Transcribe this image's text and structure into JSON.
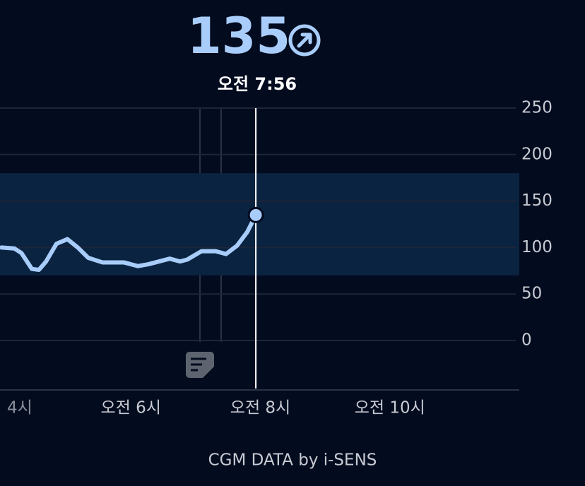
{
  "header": {
    "value": "135",
    "time": "오전 7:56"
  },
  "chart_data": {
    "type": "line",
    "x": [
      4.0,
      4.2,
      4.31,
      4.47,
      4.58,
      4.69,
      4.85,
      5.02,
      5.18,
      5.34,
      5.56,
      5.89,
      6.11,
      6.27,
      6.6,
      6.76,
      6.87,
      7.09,
      7.31,
      7.47,
      7.64,
      7.8,
      7.93
    ],
    "values": [
      100,
      99,
      94,
      77,
      76,
      85,
      104,
      109,
      100,
      89,
      84,
      84,
      80,
      82,
      88,
      85,
      87,
      96,
      96,
      93,
      102,
      117,
      135
    ],
    "color": "#a9cdfa",
    "xlim": [
      4,
      12
    ],
    "xticks": [
      {
        "value": 4,
        "label": "4시"
      },
      {
        "value": 6,
        "label": "오전 6시"
      },
      {
        "value": 8,
        "label": "오전 8시"
      },
      {
        "value": 10,
        "label": "오전 10시"
      }
    ],
    "ylim": [
      0,
      250
    ],
    "yticks": [
      0,
      50,
      100,
      150,
      200,
      250
    ],
    "target_range": [
      70,
      180
    ],
    "grid": true
  },
  "footer": "CGM DATA by i-SENS"
}
